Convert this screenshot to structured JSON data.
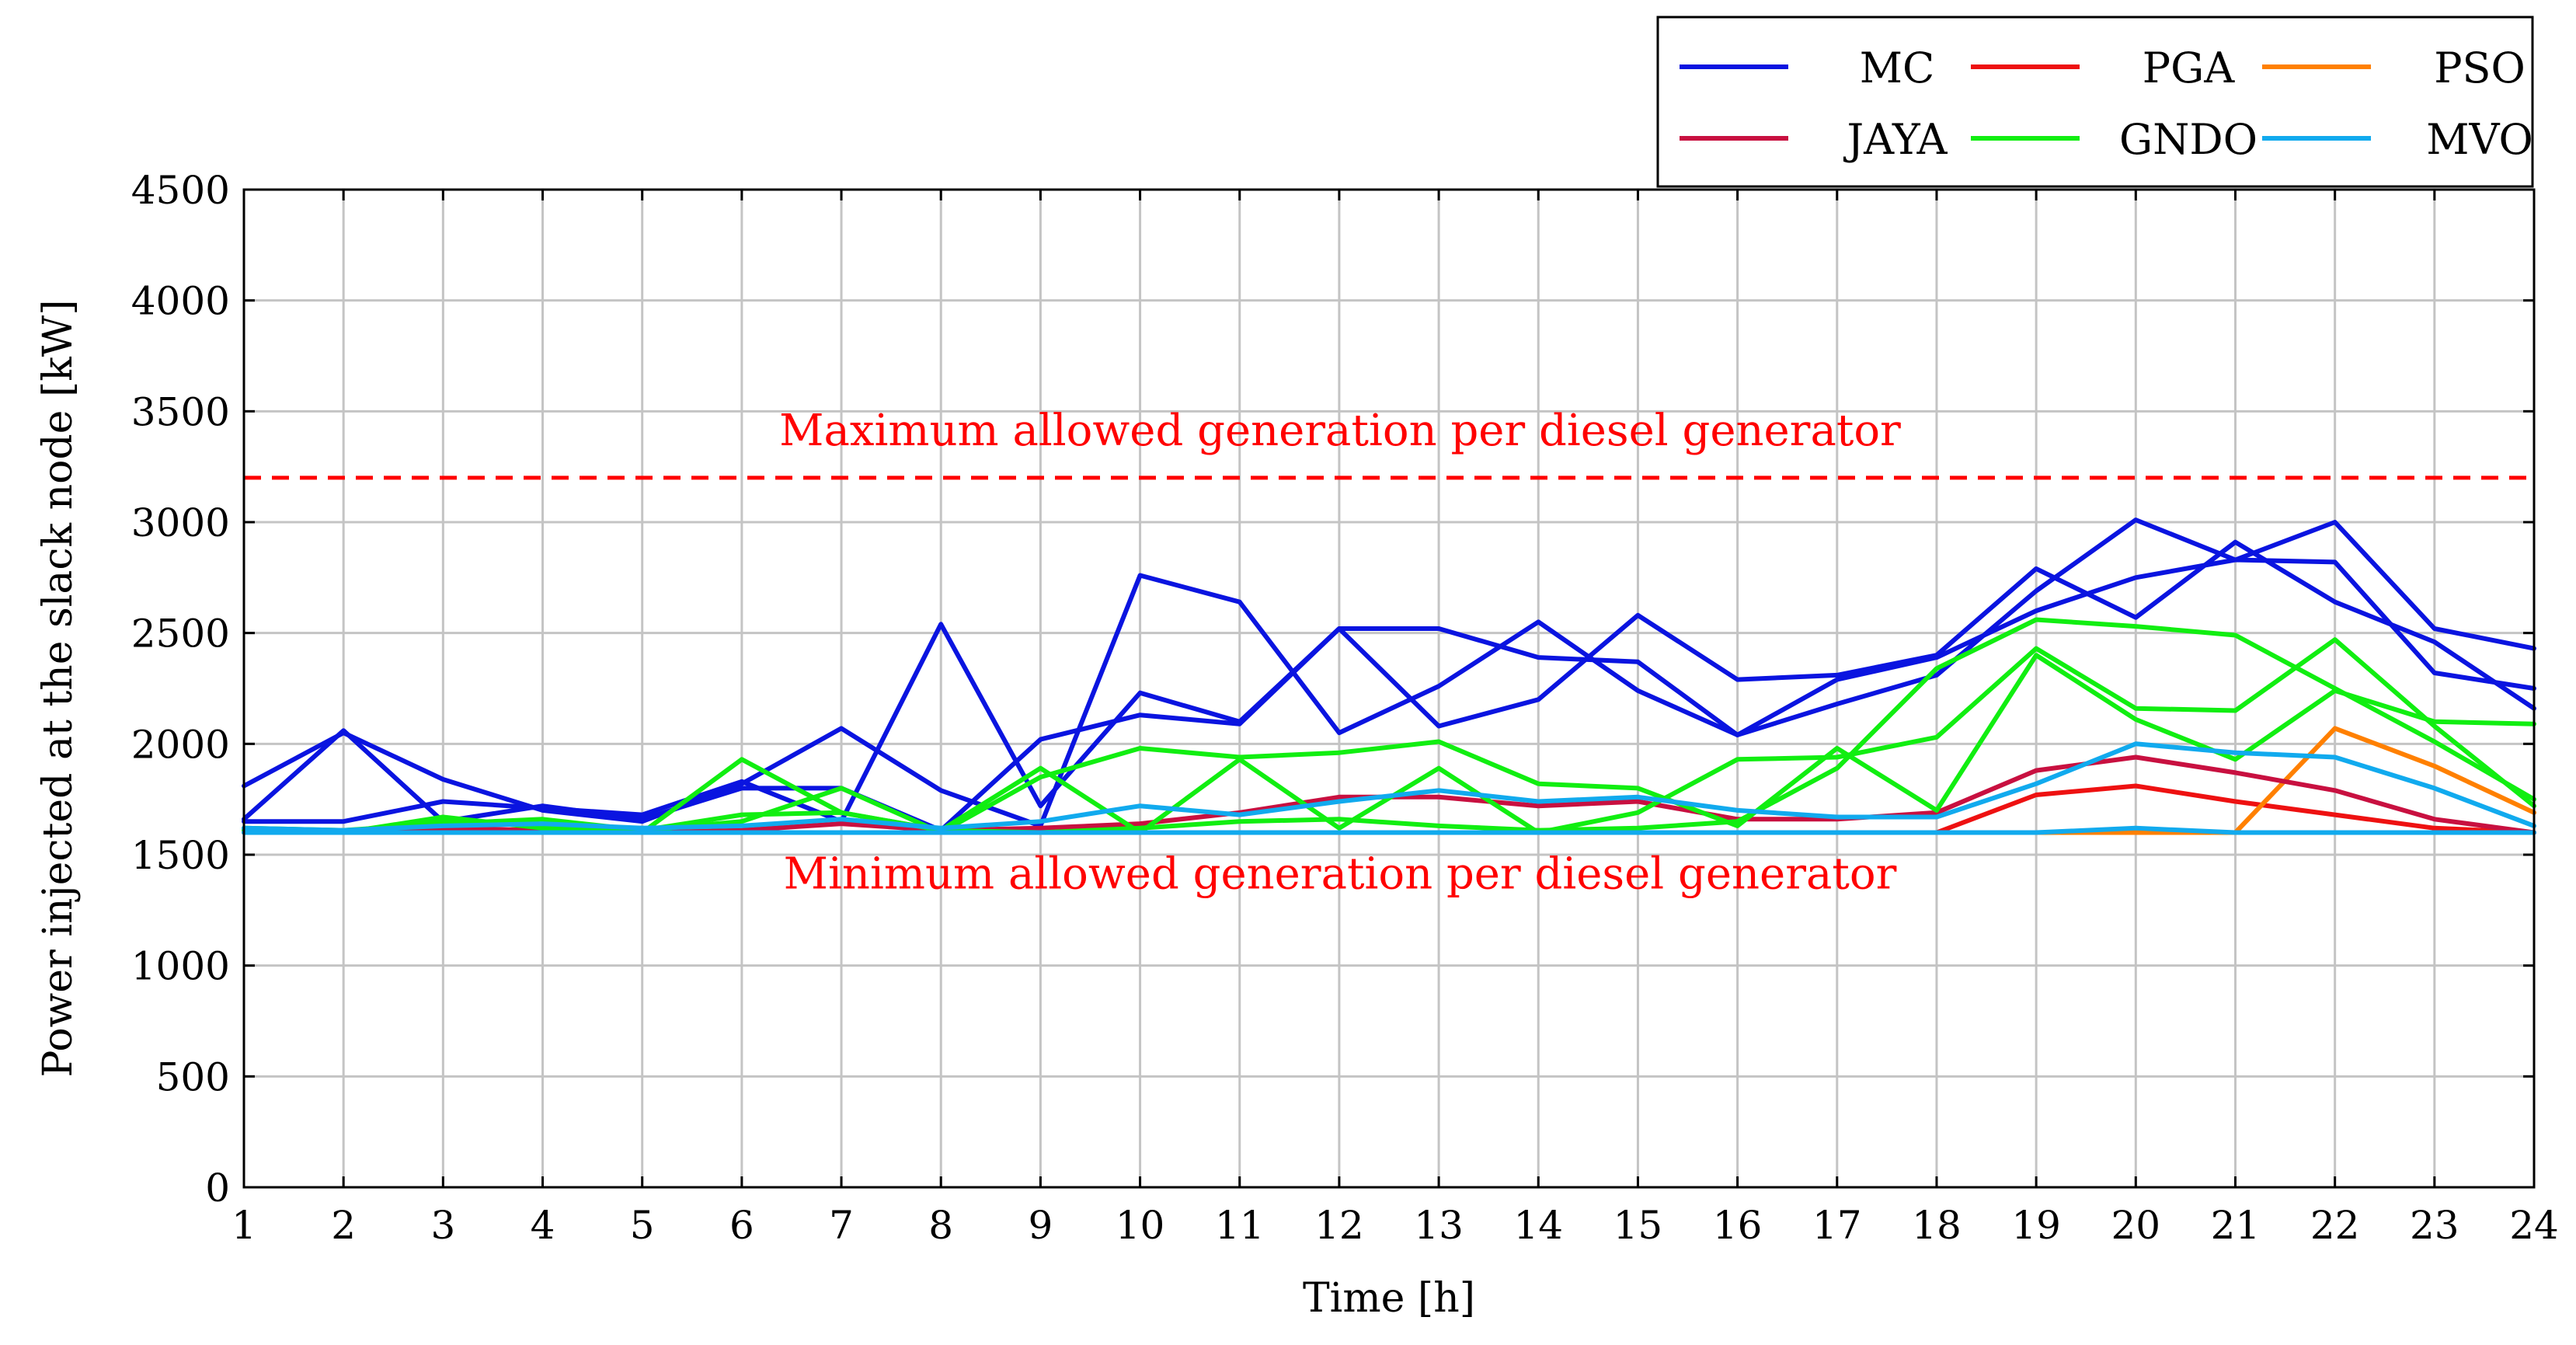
{
  "chart_data": {
    "type": "line",
    "title": "",
    "xlabel": "Time [h]",
    "ylabel": "Power injected at the slack node [kW]",
    "x": [
      1,
      2,
      3,
      4,
      5,
      6,
      7,
      8,
      9,
      10,
      11,
      12,
      13,
      14,
      15,
      16,
      17,
      18,
      19,
      20,
      21,
      22,
      23,
      24
    ],
    "xlim": [
      1,
      24
    ],
    "ylim": [
      0,
      4500
    ],
    "xticks": [
      "1",
      "2",
      "3",
      "4",
      "5",
      "6",
      "7",
      "8",
      "9",
      "10",
      "11",
      "12",
      "13",
      "14",
      "15",
      "16",
      "17",
      "18",
      "19",
      "20",
      "21",
      "22",
      "23",
      "24"
    ],
    "yticks": [
      "0",
      "500",
      "1000",
      "1500",
      "2000",
      "2500",
      "3000",
      "3500",
      "4000",
      "4500"
    ],
    "ytick_values": [
      0,
      500,
      1000,
      1500,
      2000,
      2500,
      3000,
      3500,
      4000,
      4500
    ],
    "grid": true,
    "legend_position": "top-right, above plot",
    "reference_lines": [
      {
        "label": "Maximum allowed generation per diesel generator",
        "value": 3200,
        "color": "#ff0000",
        "style": "dashed"
      },
      {
        "label": "Minimum allowed generation per diesel generator",
        "value": 1600,
        "color": "#ff0000",
        "style": "dashed"
      }
    ],
    "series": [
      {
        "name": "MC",
        "color": "#0a14e0",
        "legend": true,
        "values": [
          1810,
          2050,
          1840,
          1700,
          1650,
          1820,
          2070,
          1790,
          1630,
          2760,
          2640,
          2050,
          2260,
          2550,
          2240,
          2040,
          2290,
          2390,
          2600,
          2750,
          2830,
          2820,
          2320,
          2250
        ]
      },
      {
        "name": "MC",
        "color": "#0a14e0",
        "legend": false,
        "values": [
          1660,
          2060,
          1650,
          1720,
          1660,
          1800,
          1800,
          1610,
          2020,
          2130,
          2090,
          2520,
          2080,
          2200,
          2580,
          2290,
          2310,
          2400,
          2790,
          2570,
          2910,
          2640,
          2460,
          2160
        ]
      },
      {
        "name": "MC",
        "color": "#0a14e0",
        "legend": false,
        "values": [
          1650,
          1650,
          1740,
          1710,
          1680,
          1830,
          1650,
          2540,
          1720,
          2230,
          2100,
          2520,
          2520,
          2390,
          2370,
          2040,
          2180,
          2310,
          2690,
          3010,
          2830,
          3000,
          2520,
          2430
        ]
      },
      {
        "name": "PGA",
        "color": "#ee1111",
        "legend": true,
        "values": [
          1600,
          1600,
          1600,
          1600,
          1600,
          1600,
          1600,
          1600,
          1600,
          1600,
          1600,
          1600,
          1600,
          1600,
          1600,
          1600,
          1600,
          1600,
          1770,
          1810,
          1740,
          1680,
          1620,
          1600
        ]
      },
      {
        "name": "PSO",
        "color": "#ff8000",
        "legend": true,
        "values": [
          1600,
          1600,
          1600,
          1600,
          1600,
          1600,
          1600,
          1600,
          1600,
          1600,
          1600,
          1600,
          1600,
          1600,
          1600,
          1600,
          1600,
          1600,
          1600,
          1600,
          1600,
          2070,
          1900,
          1690
        ]
      },
      {
        "name": "JAYA",
        "color": "#c81040",
        "legend": true,
        "values": [
          1610,
          1600,
          1620,
          1610,
          1600,
          1610,
          1640,
          1610,
          1620,
          1640,
          1690,
          1760,
          1760,
          1720,
          1740,
          1660,
          1660,
          1690,
          1880,
          1940,
          1870,
          1790,
          1660,
          1600
        ]
      },
      {
        "name": "GNDO",
        "color": "#11ee11",
        "legend": true,
        "values": [
          1610,
          1600,
          1670,
          1620,
          1600,
          1930,
          1690,
          1610,
          1890,
          1600,
          1930,
          1620,
          1890,
          1600,
          1690,
          1930,
          1940,
          2030,
          2430,
          2160,
          2150,
          2470,
          2080,
          1720
        ]
      },
      {
        "name": "GNDO",
        "color": "#11ee11",
        "legend": false,
        "values": [
          1620,
          1600,
          1660,
          1630,
          1610,
          1650,
          1800,
          1600,
          1850,
          1980,
          1940,
          1960,
          2010,
          1820,
          1800,
          1630,
          1980,
          1700,
          2400,
          2110,
          1930,
          2240,
          2100,
          2090
        ]
      },
      {
        "name": "GNDO",
        "color": "#11ee11",
        "legend": false,
        "values": [
          1620,
          1610,
          1640,
          1660,
          1610,
          1680,
          1690,
          1610,
          1600,
          1620,
          1650,
          1660,
          1630,
          1610,
          1620,
          1650,
          1890,
          2340,
          2560,
          2530,
          2490,
          2250,
          2010,
          1750
        ]
      },
      {
        "name": "MVO",
        "color": "#11aaee",
        "legend": true,
        "values": [
          1600,
          1600,
          1600,
          1600,
          1600,
          1600,
          1600,
          1600,
          1600,
          1600,
          1600,
          1600,
          1600,
          1600,
          1600,
          1600,
          1600,
          1600,
          1600,
          1620,
          1600,
          1600,
          1600,
          1600
        ]
      },
      {
        "name": "MVO",
        "color": "#11aaee",
        "legend": false,
        "values": [
          1620,
          1610,
          1630,
          1640,
          1620,
          1630,
          1660,
          1620,
          1650,
          1720,
          1680,
          1740,
          1790,
          1740,
          1760,
          1700,
          1670,
          1670,
          1820,
          2000,
          1960,
          1940,
          1800,
          1630
        ]
      }
    ]
  }
}
